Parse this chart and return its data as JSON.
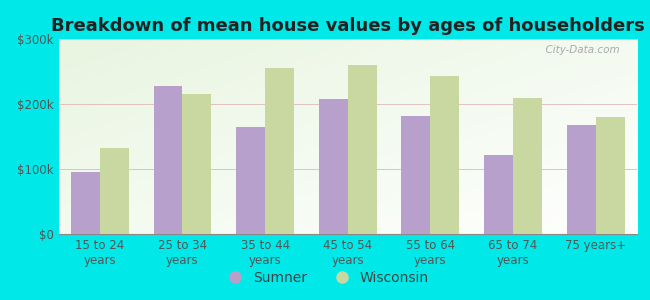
{
  "title": "Breakdown of mean house values by ages of householders",
  "categories": [
    "15 to 24\nyears",
    "25 to 34\nyears",
    "35 to 44\nyears",
    "45 to 54\nyears",
    "55 to 64\nyears",
    "65 to 74\nyears",
    "75 years+"
  ],
  "sumner_values": [
    95000,
    228000,
    165000,
    207000,
    182000,
    122000,
    168000
  ],
  "wisconsin_values": [
    133000,
    215000,
    255000,
    260000,
    243000,
    210000,
    180000
  ],
  "sumner_color": "#b8a0cc",
  "wisconsin_color": "#c8d8a0",
  "background_color": "#00e8e8",
  "ylim": [
    0,
    300000
  ],
  "yticks": [
    0,
    100000,
    200000,
    300000
  ],
  "ytick_labels": [
    "$0",
    "$100k",
    "$200k",
    "$300k"
  ],
  "legend_labels": [
    "Sumner",
    "Wisconsin"
  ],
  "title_fontsize": 13,
  "tick_fontsize": 8.5,
  "legend_fontsize": 10,
  "bar_width": 0.35
}
